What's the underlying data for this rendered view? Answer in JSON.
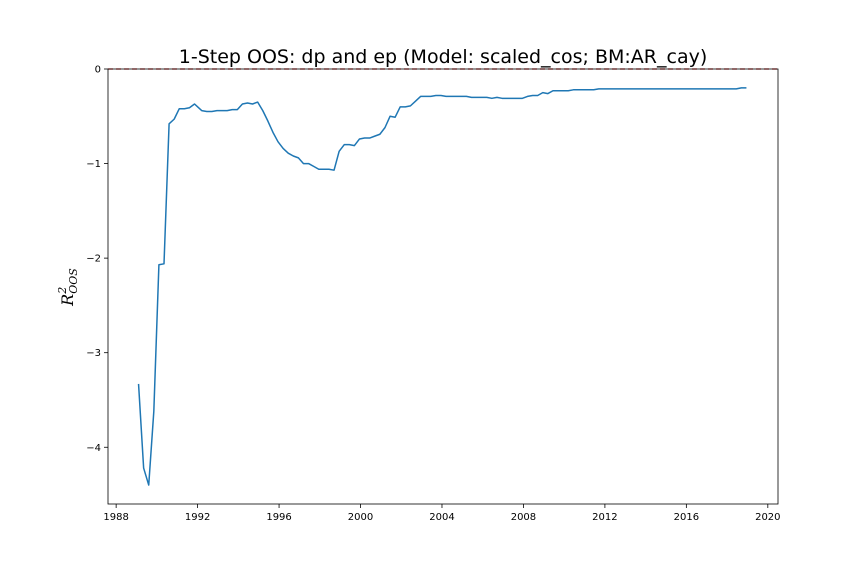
{
  "chart_data": {
    "type": "line",
    "title": "1-Step OOS: dp and ep (Model: scaled_cos; BM:AR_cay)",
    "ylabel_main": "R",
    "ylabel_sup": "2",
    "ylabel_sub": "OOS",
    "xlabel": "",
    "xlim": [
      1987.6,
      2020.5
    ],
    "ylim": [
      -4.6,
      0.0
    ],
    "xticks": [
      1988,
      1992,
      1996,
      2000,
      2004,
      2008,
      2012,
      2016,
      2020
    ],
    "xtick_labels": [
      "1988",
      "1992",
      "1996",
      "2000",
      "2004",
      "2008",
      "2012",
      "2016",
      "2020"
    ],
    "yticks": [
      0,
      -1,
      -2,
      -3,
      -4
    ],
    "ytick_labels": [
      "0",
      "−1",
      "−2",
      "−3",
      "−4"
    ],
    "grid": false,
    "reference_line": {
      "y": 0,
      "color": "#d62728",
      "style": "dashed"
    },
    "series": [
      {
        "color": "#1f77b4",
        "x": [
          1989.1,
          1989.35,
          1989.6,
          1989.85,
          1990.1,
          1990.35,
          1990.6,
          1990.85,
          1991.1,
          1991.35,
          1991.6,
          1991.85,
          1992.0,
          1992.2,
          1992.45,
          1992.7,
          1992.95,
          1993.2,
          1993.45,
          1993.7,
          1993.95,
          1994.2,
          1994.45,
          1994.7,
          1994.95,
          1995.2,
          1995.45,
          1995.7,
          1995.95,
          1996.2,
          1996.45,
          1996.7,
          1996.95,
          1997.2,
          1997.45,
          1997.7,
          1997.95,
          1998.2,
          1998.45,
          1998.7,
          1998.95,
          1999.2,
          1999.45,
          1999.7,
          1999.95,
          2000.2,
          2000.45,
          2000.7,
          2000.95,
          2001.2,
          2001.45,
          2001.7,
          2001.95,
          2002.2,
          2002.45,
          2002.7,
          2002.95,
          2003.2,
          2003.45,
          2003.7,
          2003.95,
          2004.2,
          2004.45,
          2004.7,
          2004.95,
          2005.2,
          2005.45,
          2005.7,
          2005.95,
          2006.2,
          2006.45,
          2006.7,
          2006.95,
          2007.2,
          2007.45,
          2007.7,
          2007.95,
          2008.2,
          2008.45,
          2008.7,
          2008.95,
          2009.2,
          2009.45,
          2009.7,
          2009.95,
          2010.2,
          2010.45,
          2010.7,
          2010.95,
          2011.2,
          2011.45,
          2011.7,
          2011.95,
          2012.2,
          2012.45,
          2012.7,
          2012.95,
          2013.2,
          2013.45,
          2013.7,
          2013.95,
          2014.2,
          2014.45,
          2014.7,
          2014.95,
          2015.2,
          2015.45,
          2015.7,
          2015.95,
          2016.2,
          2016.45,
          2016.7,
          2016.95,
          2017.2,
          2017.45,
          2017.7,
          2017.95,
          2018.2,
          2018.45,
          2018.7,
          2018.95
        ],
        "y": [
          -3.33,
          -4.22,
          -4.4,
          -3.62,
          -2.07,
          -2.06,
          -0.58,
          -0.53,
          -0.42,
          -0.42,
          -0.41,
          -0.37,
          -0.4,
          -0.44,
          -0.45,
          -0.45,
          -0.44,
          -0.44,
          -0.44,
          -0.43,
          -0.43,
          -0.37,
          -0.36,
          -0.37,
          -0.35,
          -0.44,
          -0.55,
          -0.67,
          -0.77,
          -0.84,
          -0.89,
          -0.92,
          -0.94,
          -1.0,
          -1.0,
          -1.03,
          -1.06,
          -1.06,
          -1.06,
          -1.07,
          -0.87,
          -0.8,
          -0.8,
          -0.81,
          -0.74,
          -0.73,
          -0.73,
          -0.71,
          -0.69,
          -0.62,
          -0.5,
          -0.51,
          -0.4,
          -0.4,
          -0.39,
          -0.34,
          -0.29,
          -0.29,
          -0.29,
          -0.28,
          -0.28,
          -0.29,
          -0.29,
          -0.29,
          -0.29,
          -0.29,
          -0.3,
          -0.3,
          -0.3,
          -0.3,
          -0.31,
          -0.3,
          -0.31,
          -0.31,
          -0.31,
          -0.31,
          -0.31,
          -0.29,
          -0.28,
          -0.28,
          -0.25,
          -0.26,
          -0.23,
          -0.23,
          -0.23,
          -0.23,
          -0.22,
          -0.22,
          -0.22,
          -0.22,
          -0.22,
          -0.21,
          -0.21,
          -0.21,
          -0.21,
          -0.21,
          -0.21,
          -0.21,
          -0.21,
          -0.21,
          -0.21,
          -0.21,
          -0.21,
          -0.21,
          -0.21,
          -0.21,
          -0.21,
          -0.21,
          -0.21,
          -0.21,
          -0.21,
          -0.21,
          -0.21,
          -0.21,
          -0.21,
          -0.21,
          -0.21,
          -0.21,
          -0.21,
          -0.2,
          -0.2
        ]
      }
    ]
  }
}
